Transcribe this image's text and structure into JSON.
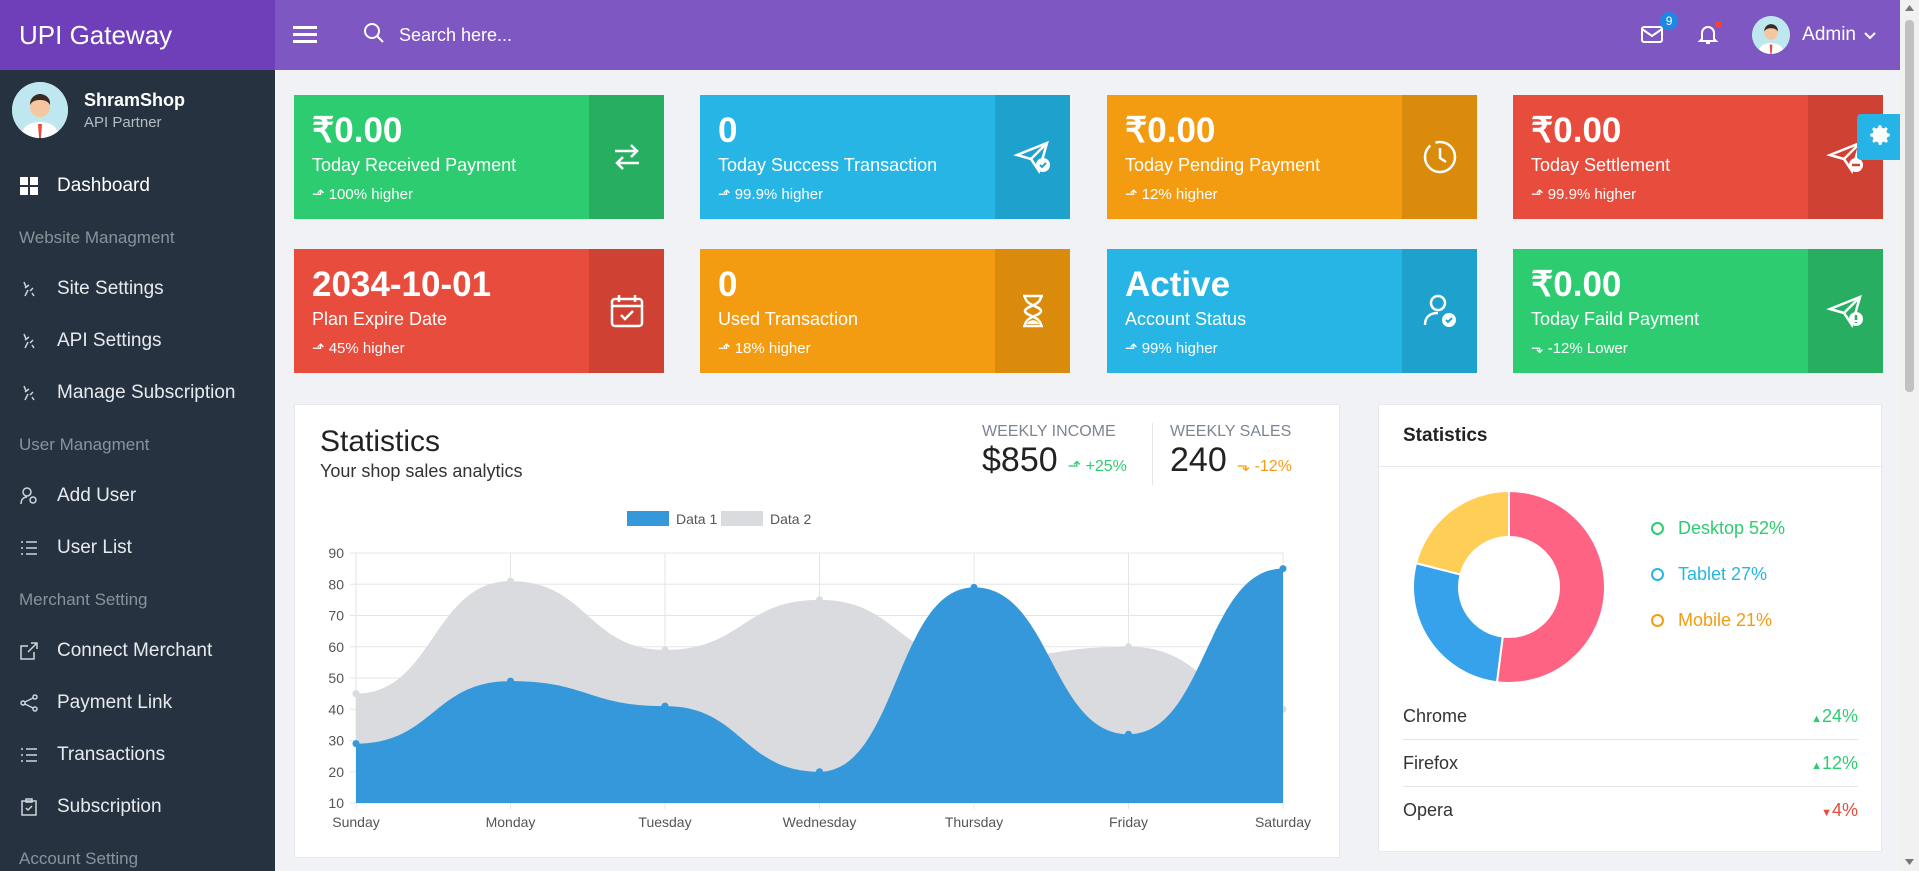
{
  "brand": "UPI Gateway",
  "profile": {
    "name": "ShramShop",
    "role": "API Partner"
  },
  "nav": {
    "dashboard": "Dashboard",
    "website_head": "Website Managment",
    "site_settings": "Site Settings",
    "api_settings": "API Settings",
    "manage_sub": "Manage Subscription",
    "user_head": "User Managment",
    "add_user": "Add User",
    "user_list": "User List",
    "merchant_head": "Merchant Setting",
    "connect_merchant": "Connect Merchant",
    "payment_link": "Payment Link",
    "transactions": "Transactions",
    "subscription": "Subscription",
    "account_head": "Account Setting"
  },
  "topbar": {
    "search_placeholder": "Search here...",
    "mail_badge": "9",
    "admin": "Admin"
  },
  "cards": [
    {
      "value": "₹0.00",
      "label": "Today Received Payment",
      "sub": "100% higher",
      "color": "#2ecc71",
      "side": "#27ae60",
      "icon": "swap-icon"
    },
    {
      "value": "0",
      "label": "Today Success Transaction",
      "sub": "99.9% higher",
      "color": "#26b5e5",
      "side": "#1fa1cd",
      "icon": "paper-plane-check-icon"
    },
    {
      "value": "₹0.00",
      "label": "Today Pending Payment",
      "sub": "12% higher",
      "color": "#f39c12",
      "side": "#db8b0b",
      "icon": "clock-icon"
    },
    {
      "value": "₹0.00",
      "label": "Today Settlement",
      "sub": "99.9% higher",
      "color": "#e74c3c",
      "side": "#cf4132",
      "icon": "paper-plane-minus-icon"
    },
    {
      "value": "2034-10-01",
      "label": "Plan Expire Date",
      "sub": "45% higher",
      "color": "#e74c3c",
      "side": "#cf4132",
      "icon": "calendar-check-icon"
    },
    {
      "value": "0",
      "label": "Used Transaction",
      "sub": "18% higher",
      "color": "#f39c12",
      "side": "#db8b0b",
      "icon": "hourglass-icon"
    },
    {
      "value": "Active",
      "label": "Account Status",
      "sub": "99% higher",
      "color": "#26b5e5",
      "side": "#1fa1cd",
      "icon": "user-check-icon"
    },
    {
      "value": "₹0.00",
      "label": "Today Faild Payment",
      "sub": "-12% Lower",
      "color": "#2ecc71",
      "side": "#27ae60",
      "icon": "paper-plane-alert-icon"
    }
  ],
  "stats": {
    "title": "Statistics",
    "subtitle": "Your shop sales analytics",
    "weekly_income_label": "WEEKLY INCOME",
    "weekly_income": "$850",
    "weekly_income_delta": "+25%",
    "weekly_sales_label": "WEEKLY SALES",
    "weekly_sales": "240",
    "weekly_sales_delta": "-12%"
  },
  "chart_data": {
    "type": "area",
    "categories": [
      "Sunday",
      "Monday",
      "Tuesday",
      "Wednesday",
      "Thursday",
      "Friday",
      "Saturday"
    ],
    "series": [
      {
        "name": "Data 1",
        "values": [
          29,
          49,
          41,
          20,
          79,
          32,
          85
        ],
        "color": "#3498db"
      },
      {
        "name": "Data 2",
        "values": [
          45,
          81,
          59,
          75,
          56,
          60,
          40
        ],
        "color": "#d9dbde"
      }
    ],
    "ylim": [
      10,
      90
    ],
    "yticks": [
      90,
      80,
      70,
      60,
      50,
      40,
      30,
      20,
      10
    ],
    "legend": "top-center",
    "grid": true
  },
  "donut": {
    "title": "Statistics",
    "segments": [
      {
        "label": "Desktop 52%",
        "value": 52,
        "color": "#ff6384"
      },
      {
        "label": "Tablet 27%",
        "value": 27,
        "color": "#36a2eb"
      },
      {
        "label": "Mobile 21%",
        "value": 21,
        "color": "#ffce56"
      }
    ],
    "legend_colors": [
      "#2ecc71",
      "#26b5e5",
      "#f39c12"
    ]
  },
  "browsers": [
    {
      "name": "Chrome",
      "value": "24%",
      "dir": "up",
      "color": "#2ecc71"
    },
    {
      "name": "Firefox",
      "value": "12%",
      "dir": "up",
      "color": "#2ecc71"
    },
    {
      "name": "Opera",
      "value": "4%",
      "dir": "down",
      "color": "#e74c3c"
    }
  ]
}
